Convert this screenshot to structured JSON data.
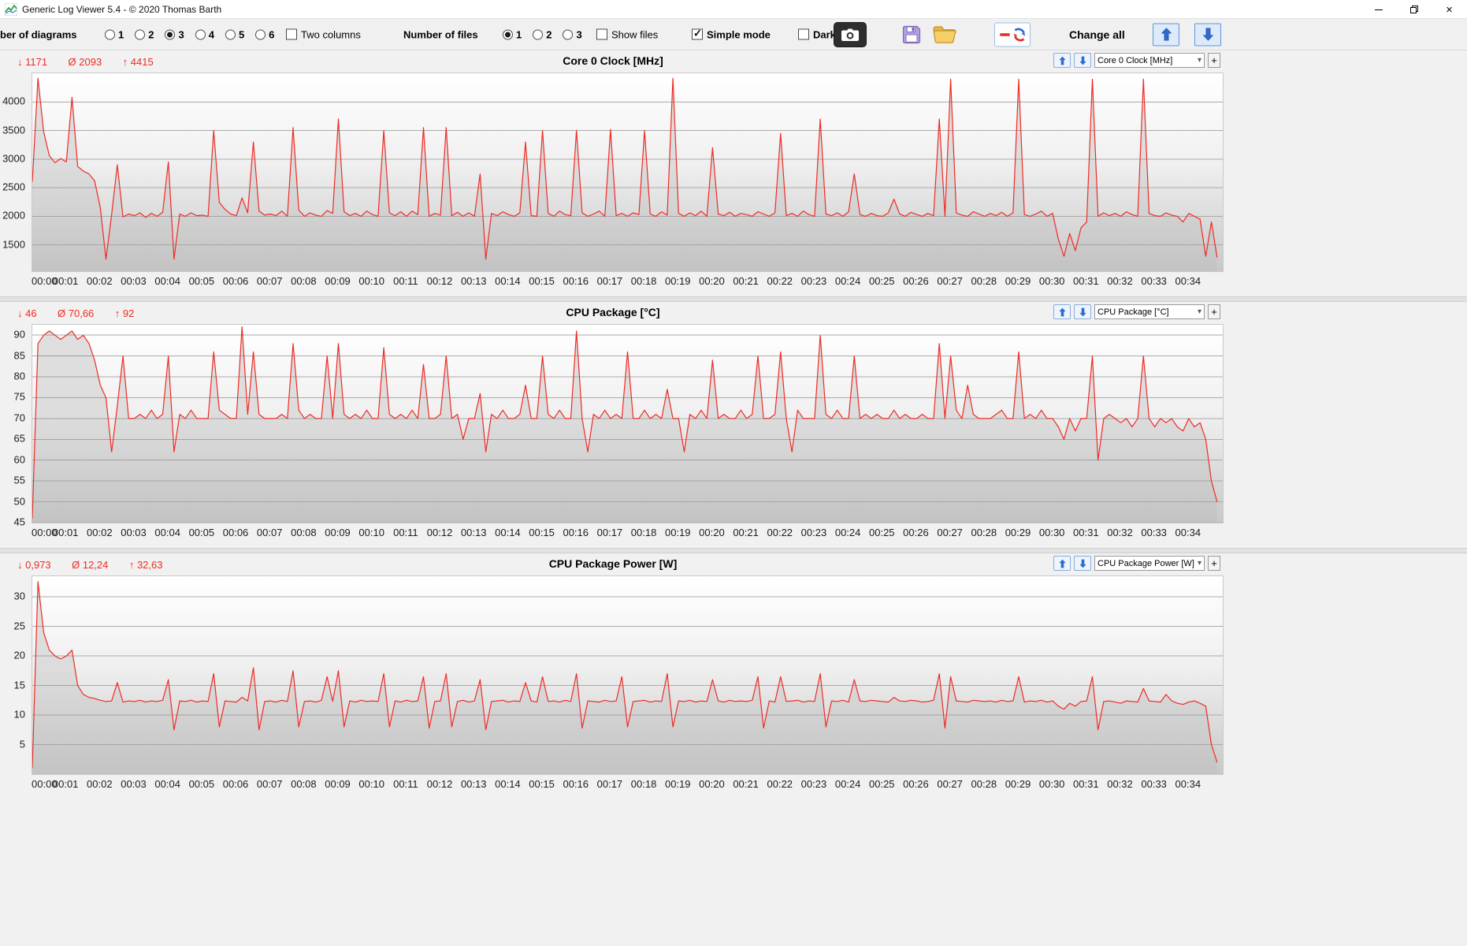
{
  "window": {
    "title": "Generic Log Viewer 5.4 - © 2020 Thomas Barth"
  },
  "colors": {
    "line_red": "#ef2b24",
    "stats_red": "#ef2b24",
    "accent_blue": "#2e6bd0"
  },
  "toolbar": {
    "diagrams_label": "ber of diagrams",
    "diagram_options": [
      "1",
      "2",
      "3",
      "4",
      "5",
      "6"
    ],
    "diagrams_selected": "3",
    "two_columns_label": "Two columns",
    "two_columns_checked": false,
    "files_label": "Number of files",
    "file_options": [
      "1",
      "2",
      "3"
    ],
    "files_selected": "1",
    "show_files_label": "Show files",
    "show_files_checked": false,
    "simple_mode_label": "Simple mode",
    "simple_mode_checked": true,
    "dark_label": "Dark",
    "dark_checked": false,
    "change_all_label": "Change all"
  },
  "chart_data": [
    {
      "type": "line",
      "title": "Core 0 Clock [MHz]",
      "selector_value": "Core 0 Clock [MHz]",
      "add_button_label": "+",
      "stat_min": "↓ 1171",
      "stat_avg": "Ø 2093",
      "stat_max": "↑ 4415",
      "y_ticks": [
        1500,
        2000,
        2500,
        3000,
        3500,
        4000
      ],
      "y_range": [
        1040,
        4500
      ],
      "x_step_seconds": 10,
      "x_domain_seconds": 2100,
      "x_labels": [
        "00:00",
        "00:01",
        "00:02",
        "00:03",
        "00:04",
        "00:05",
        "00:06",
        "00:07",
        "00:08",
        "00:09",
        "00:10",
        "00:11",
        "00:12",
        "00:13",
        "00:14",
        "00:15",
        "00:16",
        "00:17",
        "00:18",
        "00:19",
        "00:20",
        "00:21",
        "00:22",
        "00:23",
        "00:24",
        "00:25",
        "00:26",
        "00:27",
        "00:28",
        "00:29",
        "00:30",
        "00:31",
        "00:32",
        "00:33",
        "00:34"
      ],
      "values": [
        2600,
        4415,
        3480,
        3060,
        2940,
        3010,
        2950,
        4080,
        2870,
        2790,
        2740,
        2620,
        2150,
        1250,
        2030,
        2900,
        1990,
        2040,
        2010,
        2060,
        1980,
        2050,
        2000,
        2070,
        2950,
        1250,
        2040,
        2000,
        2060,
        2010,
        2020,
        2000,
        3500,
        2240,
        2120,
        2040,
        2010,
        2320,
        2060,
        3300,
        2090,
        2020,
        2040,
        2010,
        2090,
        2000,
        3550,
        2110,
        2000,
        2060,
        2020,
        2000,
        2100,
        2050,
        3700,
        2080,
        2010,
        2050,
        2000,
        2090,
        2030,
        2000,
        3500,
        2060,
        2010,
        2080,
        2000,
        2090,
        2030,
        3550,
        2000,
        2050,
        2020,
        3550,
        2010,
        2070,
        2000,
        2060,
        2000,
        2740,
        1250,
        2050,
        2010,
        2080,
        2030,
        2000,
        2060,
        3300,
        2010,
        2000,
        3500,
        2050,
        2000,
        2090,
        2030,
        2010,
        3500,
        2060,
        2000,
        2040,
        2090,
        2000,
        3520,
        2010,
        2050,
        2000,
        2060,
        2030,
        3500,
        2040,
        2000,
        2080,
        2020,
        4415,
        2050,
        2000,
        2060,
        2010,
        2090,
        2000,
        3200,
        2040,
        2010,
        2070,
        2000,
        2050,
        2030,
        2000,
        2080,
        2040,
        2000,
        2060,
        3450,
        2010,
        2050,
        2000,
        2090,
        2030,
        2000,
        3700,
        2040,
        2010,
        2060,
        2000,
        2080,
        2740,
        2030,
        2000,
        2050,
        2010,
        2000,
        2060,
        2300,
        2040,
        2000,
        2070,
        2030,
        2000,
        2050,
        2010,
        3700,
        2000,
        4400,
        2060,
        2020,
        2000,
        2080,
        2040,
        2000,
        2050,
        2010,
        2070,
        2000,
        2060,
        4400,
        2030,
        2000,
        2040,
        2090,
        2000,
        2050,
        1600,
        1300,
        1700,
        1400,
        1800,
        1900,
        4400,
        2000,
        2060,
        2010,
        2050,
        2000,
        2080,
        2030,
        2000,
        4400,
        2050,
        2010,
        2000,
        2060,
        2020,
        2000,
        1900,
        2050,
        2000,
        1950,
        1300,
        1900,
        1280
      ]
    },
    {
      "type": "line",
      "title": "CPU Package [°C]",
      "selector_value": "CPU Package [°C]",
      "add_button_label": "+",
      "stat_min": "↓ 46",
      "stat_avg": "Ø 70,66",
      "stat_max": "↑ 92",
      "y_ticks": [
        45,
        50,
        55,
        60,
        65,
        70,
        75,
        80,
        85,
        90
      ],
      "y_range": [
        45,
        92.5
      ],
      "x_step_seconds": 10,
      "x_domain_seconds": 2100,
      "x_labels": [
        "00:00",
        "00:01",
        "00:02",
        "00:03",
        "00:04",
        "00:05",
        "00:06",
        "00:07",
        "00:08",
        "00:09",
        "00:10",
        "00:11",
        "00:12",
        "00:13",
        "00:14",
        "00:15",
        "00:16",
        "00:17",
        "00:18",
        "00:19",
        "00:20",
        "00:21",
        "00:22",
        "00:23",
        "00:24",
        "00:25",
        "00:26",
        "00:27",
        "00:28",
        "00:29",
        "00:30",
        "00:31",
        "00:32",
        "00:33",
        "00:34"
      ],
      "values": [
        46,
        88,
        90,
        91,
        90,
        89,
        90,
        91,
        89,
        90,
        88,
        84,
        78,
        75,
        62,
        73,
        85,
        70,
        70,
        71,
        70,
        72,
        70,
        71,
        85,
        62,
        71,
        70,
        72,
        70,
        70,
        70,
        86,
        72,
        71,
        70,
        70,
        92,
        71,
        86,
        71,
        70,
        70,
        70,
        71,
        70,
        88,
        72,
        70,
        71,
        70,
        70,
        85,
        70,
        88,
        71,
        70,
        71,
        70,
        72,
        70,
        70,
        87,
        71,
        70,
        71,
        70,
        72,
        70,
        83,
        70,
        70,
        71,
        85,
        70,
        71,
        65,
        70,
        70,
        76,
        62,
        71,
        70,
        72,
        70,
        70,
        71,
        78,
        70,
        70,
        85,
        71,
        70,
        72,
        70,
        70,
        91,
        70,
        62,
        71,
        70,
        72,
        70,
        71,
        70,
        86,
        70,
        70,
        72,
        70,
        71,
        70,
        77,
        70,
        70,
        62,
        71,
        70,
        72,
        70,
        84,
        70,
        71,
        70,
        70,
        72,
        70,
        71,
        85,
        70,
        70,
        71,
        86,
        70,
        62,
        72,
        70,
        70,
        70,
        90,
        71,
        70,
        72,
        70,
        70,
        85,
        70,
        71,
        70,
        71,
        70,
        70,
        72,
        70,
        71,
        70,
        70,
        71,
        70,
        70,
        88,
        70,
        85,
        72,
        70,
        78,
        71,
        70,
        70,
        70,
        71,
        72,
        70,
        70,
        86,
        70,
        71,
        70,
        72,
        70,
        70,
        68,
        65,
        70,
        67,
        70,
        70,
        85,
        60,
        70,
        71,
        70,
        69,
        70,
        68,
        70,
        85,
        70,
        68,
        70,
        69,
        70,
        68,
        67,
        70,
        68,
        69,
        65,
        55,
        50
      ]
    },
    {
      "type": "line",
      "title": "CPU Package Power [W]",
      "selector_value": "CPU Package Power [W]",
      "add_button_label": "+",
      "stat_min": "↓ 0,973",
      "stat_avg": "Ø 12,24",
      "stat_max": "↑ 32,63",
      "y_ticks": [
        5,
        10,
        15,
        20,
        25,
        30
      ],
      "y_range": [
        0,
        33.5
      ],
      "x_step_seconds": 10,
      "x_domain_seconds": 2100,
      "x_labels": [
        "00:00",
        "00:01",
        "00:02",
        "00:03",
        "00:04",
        "00:05",
        "00:06",
        "00:07",
        "00:08",
        "00:09",
        "00:10",
        "00:11",
        "00:12",
        "00:13",
        "00:14",
        "00:15",
        "00:16",
        "00:17",
        "00:18",
        "00:19",
        "00:20",
        "00:21",
        "00:22",
        "00:23",
        "00:24",
        "00:25",
        "00:26",
        "00:27",
        "00:28",
        "00:29",
        "00:30",
        "00:31",
        "00:32",
        "00:33",
        "00:34"
      ],
      "values": [
        1,
        32.6,
        24,
        21,
        20,
        19.5,
        20,
        21,
        15,
        13.5,
        13,
        12.8,
        12.5,
        12.3,
        12.4,
        15.5,
        12.2,
        12.4,
        12.3,
        12.5,
        12.2,
        12.4,
        12.3,
        12.5,
        16,
        7.5,
        12.4,
        12.3,
        12.5,
        12.2,
        12.4,
        12.3,
        17,
        8,
        12.4,
        12.3,
        12.2,
        13,
        12.4,
        18,
        7.5,
        12.3,
        12.4,
        12.2,
        12.5,
        12.3,
        17.5,
        8,
        12.3,
        12.4,
        12.2,
        12.5,
        16.5,
        12.3,
        17.5,
        8,
        12.4,
        12.2,
        12.5,
        12.3,
        12.4,
        12.3,
        17,
        8,
        12.4,
        12.2,
        12.5,
        12.3,
        12.4,
        16.5,
        7.8,
        12.3,
        12.4,
        17,
        8,
        12.3,
        12.5,
        12.2,
        12.4,
        16,
        7.5,
        12.3,
        12.4,
        12.5,
        12.2,
        12.4,
        12.3,
        15.5,
        12.4,
        12.2,
        16.5,
        12.3,
        12.4,
        12.2,
        12.5,
        12.3,
        17,
        7.8,
        12.4,
        12.3,
        12.2,
        12.5,
        12.3,
        12.4,
        16.5,
        8,
        12.3,
        12.4,
        12.5,
        12.2,
        12.4,
        12.3,
        17,
        8,
        12.4,
        12.3,
        12.5,
        12.2,
        12.4,
        12.3,
        16,
        12.4,
        12.2,
        12.5,
        12.3,
        12.4,
        12.3,
        12.5,
        16.5,
        7.8,
        12.4,
        12.2,
        16.5,
        12.3,
        12.4,
        12.5,
        12.2,
        12.4,
        12.3,
        17,
        8,
        12.4,
        12.3,
        12.5,
        12.2,
        16,
        12.4,
        12.3,
        12.5,
        12.4,
        12.3,
        12.2,
        13,
        12.4,
        12.3,
        12.5,
        12.4,
        12.2,
        12.3,
        12.5,
        17,
        7.8,
        16.5,
        12.4,
        12.3,
        12.2,
        12.5,
        12.4,
        12.3,
        12.4,
        12.2,
        12.5,
        12.3,
        12.4,
        16.5,
        12.2,
        12.4,
        12.3,
        12.5,
        12.2,
        12.4,
        11.5,
        11,
        12,
        11.5,
        12.3,
        12.4,
        16.5,
        7.5,
        12.3,
        12.4,
        12.2,
        12,
        12.4,
        12.3,
        12.2,
        14.5,
        12.4,
        12.3,
        12.2,
        13.5,
        12.4,
        12,
        11.8,
        12.2,
        12.4,
        12,
        11.5,
        5,
        2
      ]
    }
  ]
}
